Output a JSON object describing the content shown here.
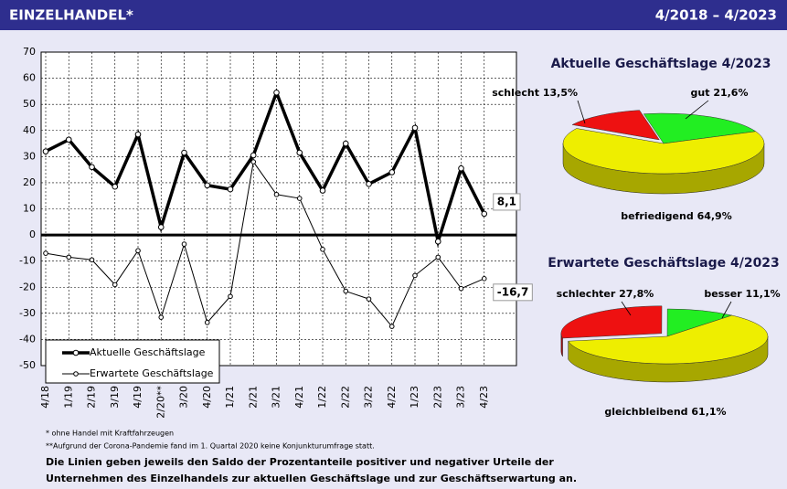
{
  "header": {
    "title": "EINZELHANDEL*",
    "period": "4/2018 – 4/2023"
  },
  "chart_data": [
    {
      "type": "line",
      "categories": [
        "4/18",
        "1/19",
        "2/19",
        "3/19",
        "4/19",
        "2/20**",
        "3/20",
        "4/20",
        "1/21",
        "2/21",
        "3/21",
        "4/21",
        "1/22",
        "2/22",
        "3/22",
        "4/22",
        "1/23",
        "2/23",
        "3/23",
        "4/23"
      ],
      "series": [
        {
          "name": "Aktuelle Geschäftslage",
          "color": "#000000",
          "values": [
            32,
            36.5,
            26,
            18.5,
            38.5,
            3,
            31.5,
            19,
            17.5,
            30.5,
            54.5,
            31.5,
            17,
            35,
            19.5,
            24,
            41,
            -2.5,
            25.5,
            8.1
          ],
          "value_labels": [
            null,
            null,
            null,
            null,
            null,
            null,
            null,
            null,
            null,
            null,
            null,
            null,
            null,
            null,
            null,
            null,
            null,
            null,
            null,
            "8,1"
          ]
        },
        {
          "name": "Erwartete Geschäftslage",
          "color": "#000000",
          "values": [
            -7,
            -8.5,
            -9.5,
            -19,
            -6,
            -31.5,
            -3.5,
            -33.5,
            -23.5,
            28,
            15.5,
            14,
            -5.5,
            -21.5,
            -24.5,
            -35,
            -15.5,
            -8.5,
            -20.5,
            -16.7
          ],
          "value_labels": [
            null,
            null,
            null,
            null,
            null,
            null,
            null,
            null,
            null,
            null,
            null,
            null,
            null,
            null,
            null,
            null,
            null,
            null,
            null,
            "-16,7"
          ]
        }
      ],
      "ylim": [
        -50,
        70
      ],
      "yticks": [
        -50,
        -40,
        -30,
        -20,
        -10,
        0,
        10,
        20,
        30,
        40,
        50,
        60,
        70
      ],
      "grid": true
    },
    {
      "type": "pie",
      "title": "Aktuelle Geschäftslage 4/2023",
      "categories": [
        "schlecht",
        "gut",
        "befriedigend"
      ],
      "values": [
        13.5,
        21.6,
        64.9
      ],
      "value_labels": [
        "13,5%",
        "21,6%",
        "64,9%"
      ],
      "colors": [
        "#ee1111",
        "#22ee22",
        "#eeee00"
      ]
    },
    {
      "type": "pie",
      "title": "Erwartete Geschäftslage 4/2023",
      "categories": [
        "schlechter",
        "besser",
        "gleichbleibend"
      ],
      "values": [
        27.8,
        11.1,
        61.1
      ],
      "value_labels": [
        "27,8%",
        "11,1%",
        "61,1%"
      ],
      "colors": [
        "#ee1111",
        "#22ee22",
        "#eeee00"
      ]
    }
  ],
  "notes": [
    "* ohne Handel mit Kraftfahrzeugen",
    "**Aufgrund der Corona-Pandemie  fand im 1. Quartal 2020 keine Konjunkturumfrage statt.",
    "Die Linien geben jeweils den Saldo der Prozentanteile positiver und negativer Urteile der",
    "Unternehmen des Einzelhandels zur aktuellen Geschäftslage und zur Geschäftserwartung an."
  ]
}
